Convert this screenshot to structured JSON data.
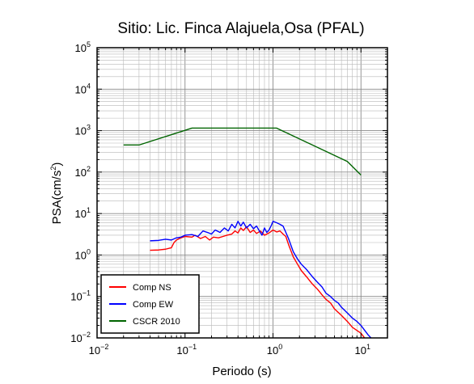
{
  "chart_data": {
    "type": "line",
    "title": "Sitio: Lic. Finca Alajuela,Osa (PFAL)",
    "xlabel": "Periodo (s)",
    "ylabel": {
      "base": "PSA(cm/s",
      "sup": "2",
      "close": ")"
    },
    "x_scale": "log",
    "y_scale": "log",
    "xlim": [
      0.01,
      20
    ],
    "ylim": [
      0.01,
      100000
    ],
    "x_ticks": [
      {
        "value": 0.01,
        "base": "10",
        "exp": "−2"
      },
      {
        "value": 0.1,
        "base": "10",
        "exp": "−1"
      },
      {
        "value": 1,
        "base": "10",
        "exp": "0"
      },
      {
        "value": 10,
        "base": "10",
        "exp": "1"
      }
    ],
    "y_ticks": [
      {
        "value": 0.01,
        "base": "10",
        "exp": "−2"
      },
      {
        "value": 0.1,
        "base": "10",
        "exp": "−1"
      },
      {
        "value": 1,
        "base": "10",
        "exp": "0"
      },
      {
        "value": 10,
        "base": "10",
        "exp": "1"
      },
      {
        "value": 100,
        "base": "10",
        "exp": "2"
      },
      {
        "value": 1000,
        "base": "10",
        "exp": "3"
      },
      {
        "value": 10000,
        "base": "10",
        "exp": "4"
      },
      {
        "value": 100000,
        "base": "10",
        "exp": "5"
      }
    ],
    "grid": true,
    "legend_position": "bottom-left",
    "series": [
      {
        "name": "Comp NS",
        "color": "#ff0000",
        "points": [
          [
            0.04,
            1.3
          ],
          [
            0.05,
            1.32
          ],
          [
            0.06,
            1.38
          ],
          [
            0.07,
            1.5
          ],
          [
            0.075,
            2.0
          ],
          [
            0.08,
            2.3
          ],
          [
            0.09,
            2.6
          ],
          [
            0.1,
            2.8
          ],
          [
            0.12,
            2.7
          ],
          [
            0.13,
            3.0
          ],
          [
            0.15,
            2.5
          ],
          [
            0.17,
            2.8
          ],
          [
            0.19,
            2.3
          ],
          [
            0.21,
            2.7
          ],
          [
            0.24,
            2.6
          ],
          [
            0.27,
            2.8
          ],
          [
            0.3,
            3.0
          ],
          [
            0.34,
            3.2
          ],
          [
            0.37,
            3.8
          ],
          [
            0.4,
            3.4
          ],
          [
            0.43,
            4.5
          ],
          [
            0.46,
            3.9
          ],
          [
            0.5,
            4.8
          ],
          [
            0.55,
            3.5
          ],
          [
            0.6,
            4.0
          ],
          [
            0.65,
            3.3
          ],
          [
            0.72,
            3.8
          ],
          [
            0.8,
            3.0
          ],
          [
            0.9,
            3.4
          ],
          [
            1.0,
            4.0
          ],
          [
            1.1,
            3.6
          ],
          [
            1.2,
            3.8
          ],
          [
            1.3,
            3.2
          ],
          [
            1.4,
            2.8
          ],
          [
            1.5,
            1.8
          ],
          [
            1.7,
            0.9
          ],
          [
            1.9,
            0.6
          ],
          [
            2.1,
            0.42
          ],
          [
            2.4,
            0.3
          ],
          [
            2.8,
            0.2
          ],
          [
            3.2,
            0.15
          ],
          [
            3.6,
            0.11
          ],
          [
            4.0,
            0.085
          ],
          [
            4.5,
            0.07
          ],
          [
            5.0,
            0.05
          ],
          [
            6.0,
            0.035
          ],
          [
            7.0,
            0.025
          ],
          [
            8.0,
            0.018
          ],
          [
            10.0,
            0.013
          ],
          [
            11.0,
            0.01
          ]
        ]
      },
      {
        "name": "Comp EW",
        "color": "#0000ff",
        "points": [
          [
            0.04,
            2.2
          ],
          [
            0.05,
            2.25
          ],
          [
            0.06,
            2.4
          ],
          [
            0.07,
            2.3
          ],
          [
            0.08,
            2.6
          ],
          [
            0.09,
            2.7
          ],
          [
            0.1,
            3.0
          ],
          [
            0.12,
            3.1
          ],
          [
            0.14,
            2.8
          ],
          [
            0.16,
            3.8
          ],
          [
            0.18,
            3.5
          ],
          [
            0.2,
            3.2
          ],
          [
            0.22,
            4.0
          ],
          [
            0.25,
            3.5
          ],
          [
            0.28,
            4.5
          ],
          [
            0.31,
            3.8
          ],
          [
            0.34,
            5.5
          ],
          [
            0.37,
            4.5
          ],
          [
            0.4,
            6.5
          ],
          [
            0.43,
            5.0
          ],
          [
            0.46,
            6.2
          ],
          [
            0.5,
            4.5
          ],
          [
            0.55,
            5.5
          ],
          [
            0.6,
            4.3
          ],
          [
            0.65,
            5.0
          ],
          [
            0.7,
            3.8
          ],
          [
            0.75,
            3.0
          ],
          [
            0.8,
            4.5
          ],
          [
            0.85,
            3.5
          ],
          [
            0.9,
            4.0
          ],
          [
            0.95,
            5.0
          ],
          [
            1.0,
            6.5
          ],
          [
            1.1,
            6.0
          ],
          [
            1.2,
            5.5
          ],
          [
            1.3,
            5.0
          ],
          [
            1.4,
            3.5
          ],
          [
            1.5,
            2.5
          ],
          [
            1.7,
            1.2
          ],
          [
            1.9,
            0.8
          ],
          [
            2.1,
            0.6
          ],
          [
            2.4,
            0.45
          ],
          [
            2.8,
            0.3
          ],
          [
            3.2,
            0.22
          ],
          [
            3.6,
            0.17
          ],
          [
            4.0,
            0.12
          ],
          [
            4.5,
            0.1
          ],
          [
            5.0,
            0.08
          ],
          [
            5.5,
            0.07
          ],
          [
            6.0,
            0.055
          ],
          [
            7.0,
            0.04
          ],
          [
            8.0,
            0.03
          ],
          [
            9.0,
            0.025
          ],
          [
            10.0,
            0.02
          ],
          [
            12.0,
            0.012
          ],
          [
            13.0,
            0.01
          ]
        ]
      },
      {
        "name": "CSCR 2010",
        "color": "#006400",
        "points": [
          [
            0.02,
            450
          ],
          [
            0.03,
            450
          ],
          [
            0.12,
            1150
          ],
          [
            1.1,
            1150
          ],
          [
            7.0,
            180
          ],
          [
            10.0,
            85
          ]
        ]
      }
    ]
  }
}
